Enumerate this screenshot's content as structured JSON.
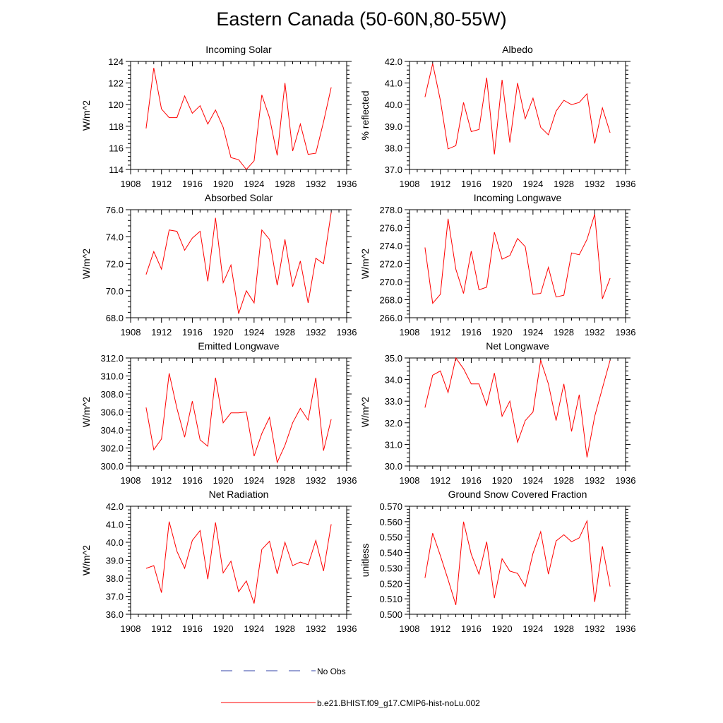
{
  "figure_title": "Eastern Canada (50-60N,80-55W)",
  "legend": [
    {
      "label": "No Obs",
      "color": "#3344aa",
      "dash": "dashed"
    },
    {
      "label": "b.e21.BHIST.f09_g17.CMIP6-hist-noLu.002",
      "color": "#ff0000",
      "dash": "solid"
    }
  ],
  "chart_data": [
    {
      "type": "line",
      "title": "Incoming Solar",
      "ylabel": "W/m^2",
      "xlim": [
        1908,
        1936
      ],
      "ylim": [
        114,
        124
      ],
      "xticks": [
        "1908",
        "1912",
        "1916",
        "1920",
        "1924",
        "1928",
        "1932",
        "1936"
      ],
      "yticks": [
        "114",
        "116",
        "118",
        "120",
        "122",
        "124"
      ],
      "x": [
        1910,
        1911,
        1912,
        1913,
        1914,
        1915,
        1916,
        1917,
        1918,
        1919,
        1920,
        1921,
        1922,
        1923,
        1924,
        1925,
        1926,
        1927,
        1928,
        1929,
        1930,
        1931,
        1932,
        1933,
        1934
      ],
      "series": [
        {
          "color": "#ff0000",
          "values": [
            117.8,
            123.4,
            119.6,
            118.8,
            118.8,
            120.8,
            119.2,
            119.9,
            118.2,
            119.5,
            117.9,
            115.1,
            114.9,
            114.0,
            114.8,
            120.9,
            118.8,
            115.3,
            122.0,
            115.7,
            118.2,
            115.4,
            115.5,
            118.4,
            121.6
          ]
        }
      ]
    },
    {
      "type": "line",
      "title": "Albedo",
      "ylabel": "% reflected",
      "xlim": [
        1908,
        1936
      ],
      "ylim": [
        37,
        42
      ],
      "xticks": [
        "1908",
        "1912",
        "1916",
        "1920",
        "1924",
        "1928",
        "1932",
        "1936"
      ],
      "yticks": [
        "37.0",
        "38.0",
        "39.0",
        "40.0",
        "41.0",
        "42.0"
      ],
      "x": [
        1910,
        1911,
        1912,
        1913,
        1914,
        1915,
        1916,
        1917,
        1918,
        1919,
        1920,
        1921,
        1922,
        1923,
        1924,
        1925,
        1926,
        1927,
        1928,
        1929,
        1930,
        1931,
        1932,
        1933,
        1934
      ],
      "series": [
        {
          "color": "#ff0000",
          "values": [
            40.35,
            41.9,
            40.2,
            37.95,
            38.1,
            40.1,
            38.75,
            38.85,
            41.25,
            37.7,
            41.15,
            38.25,
            41.0,
            39.35,
            40.3,
            38.95,
            38.6,
            39.7,
            40.2,
            40.0,
            40.1,
            40.5,
            38.2,
            39.85,
            38.7
          ]
        }
      ]
    },
    {
      "type": "line",
      "title": "Absorbed Solar",
      "ylabel": "W/m^2",
      "xlim": [
        1908,
        1936
      ],
      "ylim": [
        68,
        76
      ],
      "xticks": [
        "1908",
        "1912",
        "1916",
        "1920",
        "1924",
        "1928",
        "1932",
        "1936"
      ],
      "yticks": [
        "68.0",
        "70.0",
        "72.0",
        "74.0",
        "76.0"
      ],
      "x": [
        1910,
        1911,
        1912,
        1913,
        1914,
        1915,
        1916,
        1917,
        1918,
        1919,
        1920,
        1921,
        1922,
        1923,
        1924,
        1925,
        1926,
        1927,
        1928,
        1929,
        1930,
        1931,
        1932,
        1933,
        1934
      ],
      "series": [
        {
          "color": "#ff0000",
          "values": [
            71.2,
            72.9,
            71.6,
            74.5,
            74.4,
            73.0,
            73.9,
            74.4,
            70.7,
            75.4,
            70.6,
            71.9,
            68.3,
            70.0,
            69.1,
            74.5,
            73.8,
            70.4,
            73.8,
            70.3,
            72.2,
            69.1,
            72.4,
            72.0,
            75.8
          ]
        }
      ]
    },
    {
      "type": "line",
      "title": "Incoming Longwave",
      "ylabel": "W/m^2",
      "xlim": [
        1908,
        1936
      ],
      "ylim": [
        266,
        278
      ],
      "xticks": [
        "1908",
        "1912",
        "1916",
        "1920",
        "1924",
        "1928",
        "1932",
        "1936"
      ],
      "yticks": [
        "266.0",
        "268.0",
        "270.0",
        "272.0",
        "274.0",
        "276.0",
        "278.0"
      ],
      "x": [
        1910,
        1911,
        1912,
        1913,
        1914,
        1915,
        1916,
        1917,
        1918,
        1919,
        1920,
        1921,
        1922,
        1923,
        1924,
        1925,
        1926,
        1927,
        1928,
        1929,
        1930,
        1931,
        1932,
        1933,
        1934
      ],
      "series": [
        {
          "color": "#ff0000",
          "values": [
            273.8,
            267.6,
            268.6,
            277.0,
            271.4,
            268.7,
            273.4,
            269.1,
            269.4,
            275.5,
            272.5,
            272.9,
            274.8,
            273.9,
            268.6,
            268.7,
            271.6,
            268.3,
            268.5,
            273.2,
            273.0,
            274.7,
            277.5,
            268.1,
            270.4
          ]
        }
      ]
    },
    {
      "type": "line",
      "title": "Emitted Longwave",
      "ylabel": "W/m^2",
      "xlim": [
        1908,
        1936
      ],
      "ylim": [
        300,
        312
      ],
      "xticks": [
        "1908",
        "1912",
        "1916",
        "1920",
        "1924",
        "1928",
        "1932",
        "1936"
      ],
      "yticks": [
        "300.0",
        "302.0",
        "304.0",
        "306.0",
        "308.0",
        "310.0",
        "312.0"
      ],
      "x": [
        1910,
        1911,
        1912,
        1913,
        1914,
        1915,
        1916,
        1917,
        1918,
        1919,
        1920,
        1921,
        1922,
        1923,
        1924,
        1925,
        1926,
        1927,
        1928,
        1929,
        1930,
        1931,
        1932,
        1933,
        1934
      ],
      "series": [
        {
          "color": "#ff0000",
          "values": [
            306.5,
            301.8,
            303.0,
            310.3,
            306.4,
            303.2,
            307.2,
            302.9,
            302.2,
            309.8,
            304.8,
            305.9,
            305.9,
            306.0,
            301.1,
            303.6,
            305.4,
            300.4,
            302.3,
            304.8,
            306.4,
            305.1,
            309.8,
            301.7,
            305.2
          ]
        }
      ]
    },
    {
      "type": "line",
      "title": "Net Longwave",
      "ylabel": "W/m^2",
      "xlim": [
        1908,
        1936
      ],
      "ylim": [
        30,
        35
      ],
      "xticks": [
        "1908",
        "1912",
        "1916",
        "1920",
        "1924",
        "1928",
        "1932",
        "1936"
      ],
      "yticks": [
        "30.0",
        "31.0",
        "32.0",
        "33.0",
        "34.0",
        "35.0"
      ],
      "x": [
        1910,
        1911,
        1912,
        1913,
        1914,
        1915,
        1916,
        1917,
        1918,
        1919,
        1920,
        1921,
        1922,
        1923,
        1924,
        1925,
        1926,
        1927,
        1928,
        1929,
        1930,
        1931,
        1932,
        1933,
        1934
      ],
      "series": [
        {
          "color": "#ff0000",
          "values": [
            32.7,
            34.2,
            34.4,
            33.4,
            35.0,
            34.5,
            33.8,
            33.8,
            32.8,
            34.3,
            32.3,
            33.0,
            31.1,
            32.1,
            32.5,
            34.9,
            33.8,
            32.1,
            33.8,
            31.6,
            33.3,
            30.4,
            32.3,
            33.6,
            34.9
          ]
        }
      ]
    },
    {
      "type": "line",
      "title": "Net Radiation",
      "ylabel": "W/m^2",
      "xlim": [
        1908,
        1936
      ],
      "ylim": [
        36,
        42
      ],
      "xticks": [
        "1908",
        "1912",
        "1916",
        "1920",
        "1924",
        "1928",
        "1932",
        "1936"
      ],
      "yticks": [
        "36.0",
        "37.0",
        "38.0",
        "39.0",
        "40.0",
        "41.0",
        "42.0"
      ],
      "x": [
        1910,
        1911,
        1912,
        1913,
        1914,
        1915,
        1916,
        1917,
        1918,
        1919,
        1920,
        1921,
        1922,
        1923,
        1924,
        1925,
        1926,
        1927,
        1928,
        1929,
        1930,
        1931,
        1932,
        1933,
        1934
      ],
      "series": [
        {
          "color": "#ff0000",
          "values": [
            38.55,
            38.7,
            37.2,
            41.15,
            39.5,
            38.55,
            40.1,
            40.65,
            37.95,
            41.1,
            38.3,
            38.95,
            37.25,
            37.85,
            36.6,
            39.6,
            40.05,
            38.25,
            40.0,
            38.7,
            38.9,
            38.75,
            40.1,
            38.4,
            41.0
          ]
        }
      ]
    },
    {
      "type": "line",
      "title": "Ground Snow Covered Fraction",
      "ylabel": "unitless",
      "xlim": [
        1908,
        1936
      ],
      "ylim": [
        0.5,
        0.57
      ],
      "xticks": [
        "1908",
        "1912",
        "1916",
        "1920",
        "1924",
        "1928",
        "1932",
        "1936"
      ],
      "yticks": [
        "0.500",
        "0.510",
        "0.520",
        "0.530",
        "0.540",
        "0.550",
        "0.560",
        "0.570"
      ],
      "x": [
        1910,
        1911,
        1912,
        1913,
        1914,
        1915,
        1916,
        1917,
        1918,
        1919,
        1920,
        1921,
        1922,
        1923,
        1924,
        1925,
        1926,
        1927,
        1928,
        1929,
        1930,
        1931,
        1932,
        1933,
        1934
      ],
      "series": [
        {
          "color": "#ff0000",
          "values": [
            0.5235,
            0.5525,
            0.538,
            0.5225,
            0.506,
            0.56,
            0.539,
            0.526,
            0.547,
            0.5105,
            0.536,
            0.528,
            0.5265,
            0.518,
            0.5395,
            0.5535,
            0.526,
            0.5475,
            0.5515,
            0.547,
            0.5495,
            0.5605,
            0.508,
            0.544,
            0.518
          ]
        }
      ]
    }
  ]
}
